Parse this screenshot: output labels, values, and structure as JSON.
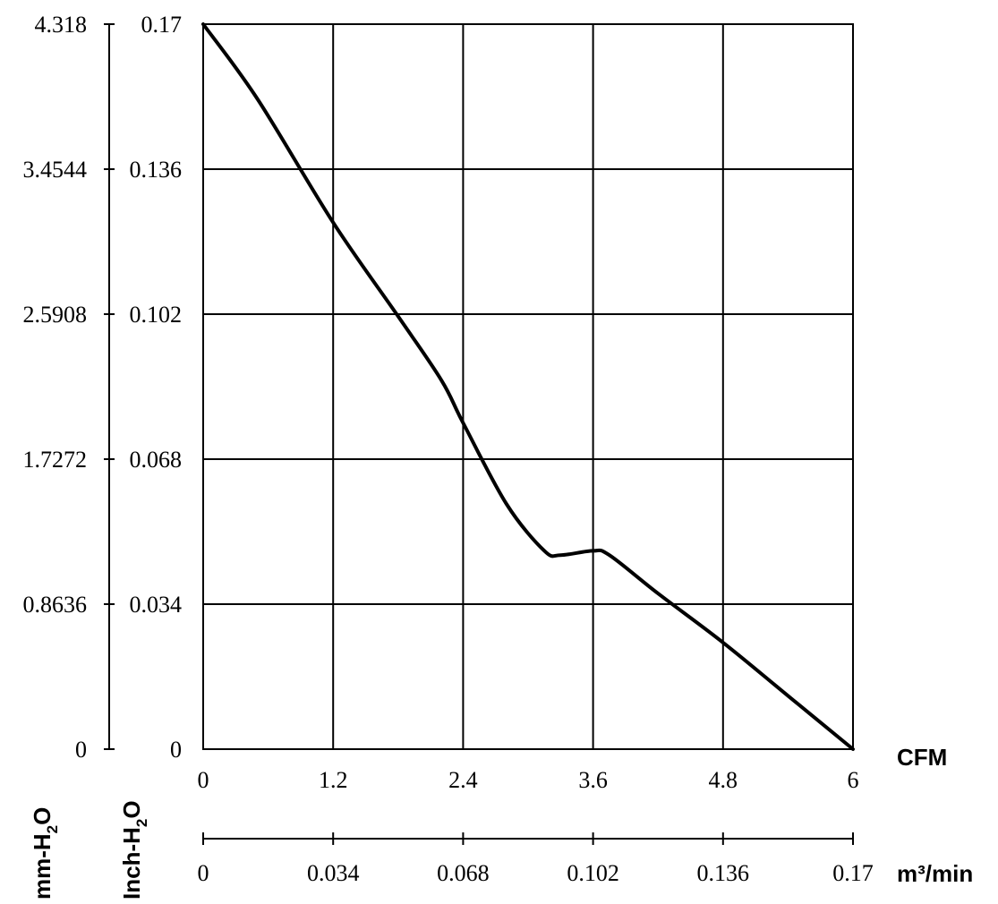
{
  "chart_data": {
    "type": "line",
    "title": "",
    "axes": {
      "y_mm": {
        "unit_label": "mm-H",
        "subscript": "2",
        "suffix": "O",
        "ticks": [
          "0",
          "0.8636",
          "1.7272",
          "2.5908",
          "3.4544",
          "4.318"
        ],
        "ylim": [
          0,
          4.318
        ]
      },
      "y_inch": {
        "unit_label": "Inch-H",
        "subscript": "2",
        "suffix": "O",
        "ticks": [
          "0",
          "0.034",
          "0.068",
          "0.102",
          "0.136",
          "0.17"
        ],
        "ylim": [
          0,
          0.17
        ]
      },
      "x_cfm": {
        "unit_label": "CFM",
        "ticks": [
          "0",
          "1.2",
          "2.4",
          "3.6",
          "4.8",
          "6"
        ],
        "xlim": [
          0,
          6
        ]
      },
      "x_m3": {
        "unit_label": "m³/min",
        "ticks": [
          "0",
          "0.034",
          "0.068",
          "0.102",
          "0.136",
          "0.17"
        ],
        "xlim": [
          0,
          0.17
        ]
      }
    },
    "grid": true,
    "series": [
      {
        "x": [
          0,
          0.5,
          1.2,
          1.8,
          2.2,
          2.4,
          2.8,
          3.15,
          3.3,
          3.6,
          3.75,
          4.2,
          4.8,
          5.4,
          6.0
        ],
        "y": [
          0.17,
          0.1525,
          0.1235,
          0.1015,
          0.0865,
          0.0765,
          0.0575,
          0.0465,
          0.0455,
          0.0465,
          0.0455,
          0.0365,
          0.025,
          0.0125,
          0.0
        ]
      }
    ]
  }
}
